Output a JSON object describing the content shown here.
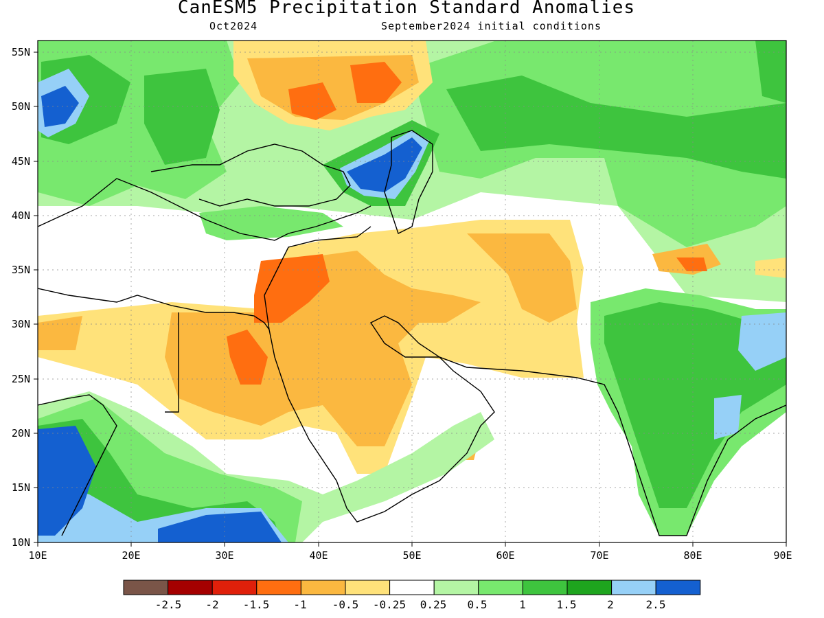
{
  "title": "CanESM5 Precipitation Standard Anomalies",
  "subtitle_left": "Oct2024",
  "subtitle_right": "September2024 initial conditions",
  "lon_ticks": [
    "10E",
    "20E",
    "30E",
    "40E",
    "50E",
    "60E",
    "70E",
    "80E",
    "90E"
  ],
  "lat_ticks": [
    "55N",
    "50N",
    "45N",
    "40N",
    "35N",
    "30N",
    "25N",
    "20N",
    "15N",
    "10N"
  ],
  "colorbar": {
    "colors": [
      "#7a5548",
      "#a50000",
      "#e0200a",
      "#ff6e10",
      "#fbb840",
      "#ffe27a",
      "#ffffff",
      "#b4f5a4",
      "#78e86e",
      "#3ec43e",
      "#1ea51e",
      "#96d0f7",
      "#1460d0"
    ],
    "labels": [
      "-2.5",
      "-2",
      "-1.5",
      "-1",
      "-0.5",
      "-0.25",
      "0.25",
      "0.5",
      "1",
      "1.5",
      "2",
      "2.5"
    ]
  }
}
